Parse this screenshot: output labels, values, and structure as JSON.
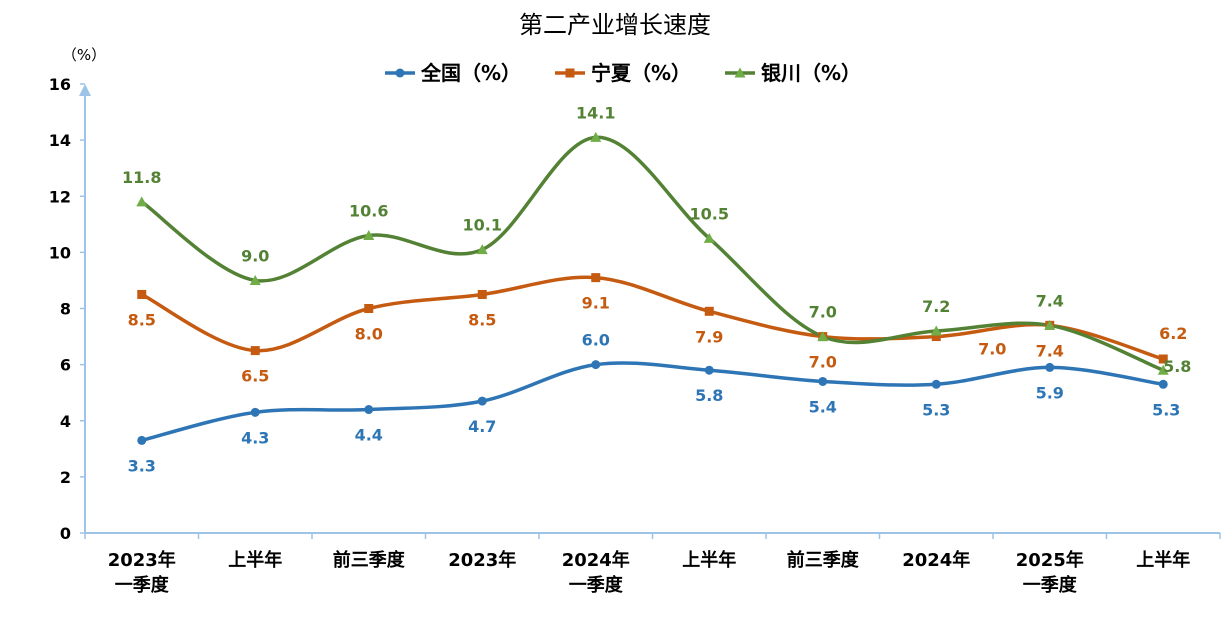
{
  "chart_data": {
    "type": "line",
    "title": "第二产业增长速度",
    "ylabel": "（%）",
    "ylim": [
      0,
      16
    ],
    "yticks": [
      0,
      2,
      4,
      6,
      8,
      10,
      12,
      14,
      16
    ],
    "legend_position": "top",
    "grid": false,
    "categories": [
      [
        "2023年",
        "一季度"
      ],
      [
        "上半年"
      ],
      [
        "前三季度"
      ],
      [
        "2023年"
      ],
      [
        "2024年",
        "一季度"
      ],
      [
        "上半年"
      ],
      [
        "前三季度"
      ],
      [
        "2024年"
      ],
      [
        "2025年",
        "一季度"
      ],
      [
        "上半年"
      ]
    ],
    "series": [
      {
        "name": "全国（%）",
        "color": "#2e75b6",
        "marker": "circle",
        "values": [
          3.3,
          4.3,
          4.4,
          4.7,
          6.0,
          5.8,
          5.4,
          5.3,
          5.9,
          5.3
        ],
        "labels": [
          "3.3",
          "4.3",
          "4.4",
          "4.7",
          "6.0",
          "5.8",
          "5.4",
          "5.3",
          "5.9",
          "5.3"
        ]
      },
      {
        "name": "宁夏（%）",
        "color": "#c55a11",
        "marker": "square",
        "values": [
          8.5,
          6.5,
          8.0,
          8.5,
          9.1,
          7.9,
          7.0,
          7.0,
          7.4,
          6.2
        ],
        "labels": [
          "8.5",
          "6.5",
          "8.0",
          "8.5",
          "9.1",
          "7.9",
          "7.0",
          "7.0",
          "7.4",
          "6.2"
        ]
      },
      {
        "name": "银川（%）",
        "color": "#548235",
        "marker": "triangle",
        "marker_color": "#70ad47",
        "values": [
          11.8,
          9.0,
          10.6,
          10.1,
          14.1,
          10.5,
          7.0,
          7.2,
          7.4,
          5.8
        ],
        "labels": [
          "11.8",
          "9.0",
          "10.6",
          "10.1",
          "14.1",
          "10.5",
          "7.0",
          "7.2",
          "7.4",
          "5.8"
        ]
      }
    ],
    "axis_color": "#9dc3e6"
  }
}
